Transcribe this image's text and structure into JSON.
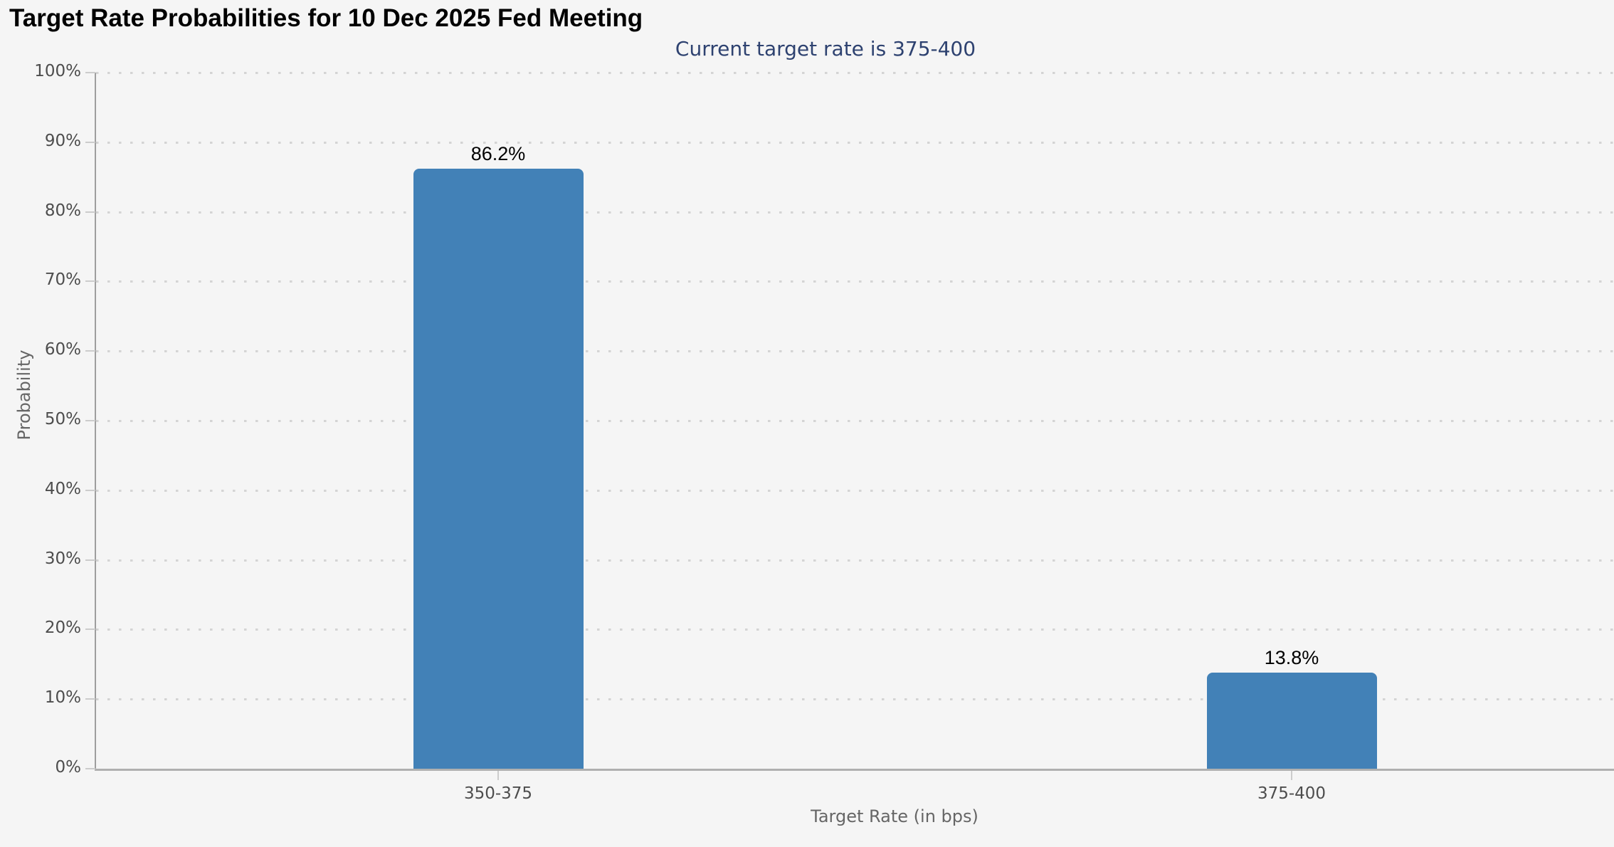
{
  "header": {
    "title": "Target Rate Probabilities for 10 Dec 2025 Fed Meeting",
    "subtitle": "Current target rate is 375-400"
  },
  "chart_data": {
    "type": "bar",
    "title": "Target Rate Probabilities for 10 Dec 2025 Fed Meeting",
    "subtitle": "Current target rate is 375-400",
    "categories": [
      "350-375",
      "375-400"
    ],
    "values": [
      86.2,
      13.8
    ],
    "value_labels": [
      "86.2%",
      "13.8%"
    ],
    "xlabel": "Target Rate (in bps)",
    "ylabel": "Probability",
    "ylim": [
      0,
      100
    ],
    "y_tick_step": 10,
    "y_ticks": [
      "0%",
      "10%",
      "20%",
      "30%",
      "40%",
      "50%",
      "60%",
      "70%",
      "80%",
      "90%",
      "100%"
    ],
    "grid": "horizontal dotted",
    "legend": "none",
    "bar_color": "#4281b7"
  },
  "colors": {
    "background": "#f5f5f5",
    "bar": "#4281b7",
    "subtitle_text": "#2e4270",
    "tick_label_text": "#4d4d4d",
    "axis_title_text": "#666666",
    "gridline": "#d4d4d4",
    "axis_line": "#9e9e9e"
  }
}
